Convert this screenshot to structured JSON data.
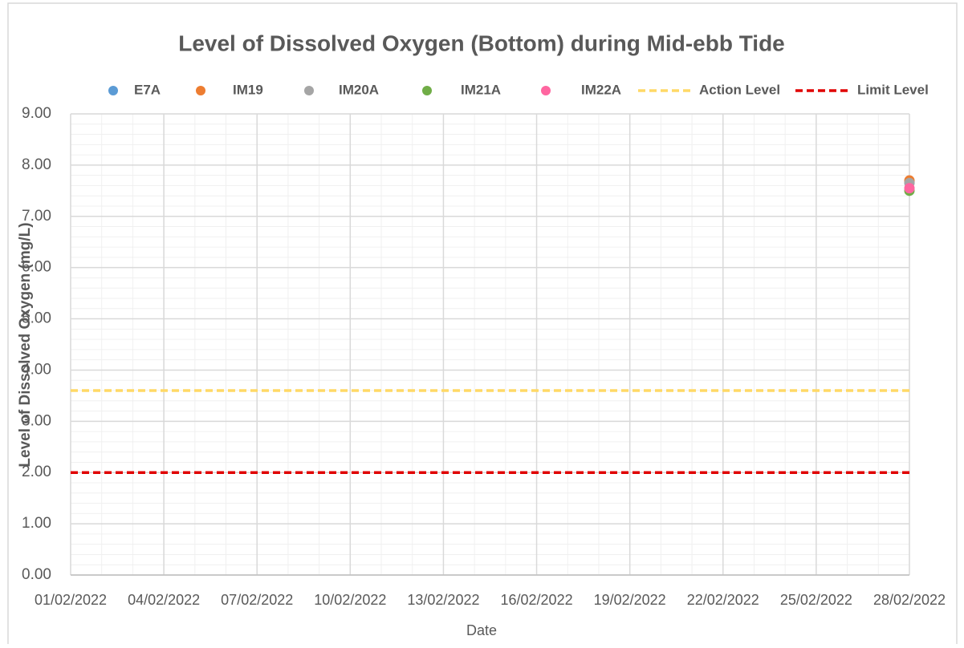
{
  "chart_data": {
    "type": "scatter",
    "title": "Level of Dissolved Oxygen (Bottom) during Mid-ebb Tide",
    "x_label": "Date",
    "y_label": "Level of Dissolved Oxygen (mg/L)",
    "xlim": [
      "01/02/2022",
      "28/02/2022"
    ],
    "xticks": [
      "01/02/2022",
      "04/02/2022",
      "07/02/2022",
      "10/02/2022",
      "13/02/2022",
      "16/02/2022",
      "19/02/2022",
      "22/02/2022",
      "25/02/2022",
      "28/02/2022"
    ],
    "ylim": [
      0,
      9
    ],
    "yticks": [
      {
        "value": 0,
        "label": "0.00"
      },
      {
        "value": 1,
        "label": "1.00"
      },
      {
        "value": 2,
        "label": "2.00"
      },
      {
        "value": 3,
        "label": "3.00"
      },
      {
        "value": 4,
        "label": "4.00"
      },
      {
        "value": 5,
        "label": "5.00"
      },
      {
        "value": 6,
        "label": "6.00"
      },
      {
        "value": 7,
        "label": "7.00"
      },
      {
        "value": 8,
        "label": "8.00"
      },
      {
        "value": 9,
        "label": "9.00"
      }
    ],
    "grid": true,
    "minor_grid": true,
    "legend": "top",
    "series": [
      {
        "name": "E7A",
        "color": "#5b9bd5",
        "mode": "markers",
        "x": [
          "28/02/2022"
        ],
        "values": [
          7.66
        ]
      },
      {
        "name": "IM19",
        "color": "#ed7d31",
        "mode": "markers",
        "x": [
          "28/02/2022"
        ],
        "values": [
          7.7
        ]
      },
      {
        "name": "IM20A",
        "color": "#a5a5a5",
        "mode": "markers",
        "x": [
          "28/02/2022"
        ],
        "values": [
          7.65
        ]
      },
      {
        "name": "IM21A",
        "color": "#70ad47",
        "mode": "markers",
        "x": [
          "28/02/2022"
        ],
        "values": [
          7.5
        ]
      },
      {
        "name": "IM22A",
        "color": "#ff66a0",
        "mode": "markers",
        "x": [
          "28/02/2022"
        ],
        "values": [
          7.55
        ]
      },
      {
        "name": "Action Level",
        "color": "#ffd966",
        "mode": "dashed-line",
        "x": [
          "01/02/2022",
          "28/02/2022"
        ],
        "values": [
          3.6,
          3.6
        ]
      },
      {
        "name": "Limit Level",
        "color": "#e00000",
        "mode": "dashed-line",
        "x": [
          "01/02/2022",
          "28/02/2022"
        ],
        "values": [
          2,
          2
        ]
      }
    ]
  }
}
